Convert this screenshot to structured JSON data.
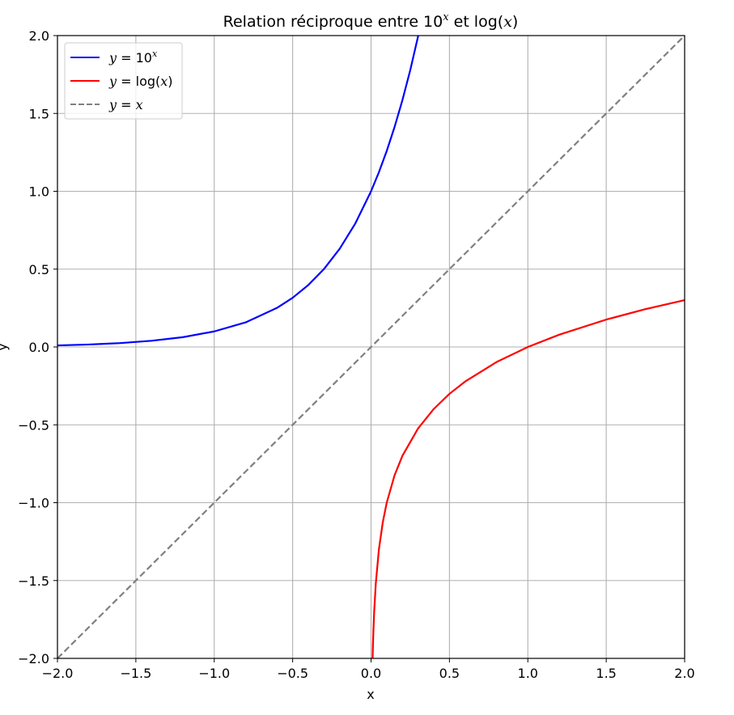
{
  "chart_data": {
    "type": "line",
    "title": {
      "prefix": "Relation réciproque entre 10",
      "sup": "x",
      "middle": " et log(",
      "var": "x",
      "suffix": ")"
    },
    "xlabel": "x",
    "ylabel": "y",
    "xlim": [
      -2.0,
      2.0
    ],
    "ylim": [
      -2.0,
      2.0
    ],
    "xticks": [
      -2.0,
      -1.5,
      -1.0,
      -0.5,
      0.0,
      0.5,
      1.0,
      1.5,
      2.0
    ],
    "yticks": [
      -2.0,
      -1.5,
      -1.0,
      -0.5,
      0.0,
      0.5,
      1.0,
      1.5,
      2.0
    ],
    "xtick_labels": [
      "−2.0",
      "−1.5",
      "−1.0",
      "−0.5",
      "0.0",
      "0.5",
      "1.0",
      "1.5",
      "2.0"
    ],
    "ytick_labels": [
      "−2.0",
      "−1.5",
      "−1.0",
      "−0.5",
      "0.0",
      "0.5",
      "1.0",
      "1.5",
      "2.0"
    ],
    "grid": true,
    "legend_position": "top-left",
    "series": [
      {
        "name": "y = 10^x",
        "legend": {
          "lhs": "y",
          "eq": " = 10",
          "sup": "x"
        },
        "color": "#0000ff",
        "style": "solid",
        "x": [
          -2.0,
          -1.8,
          -1.6,
          -1.4,
          -1.2,
          -1.0,
          -0.8,
          -0.6,
          -0.5,
          -0.4,
          -0.3,
          -0.2,
          -0.1,
          0.0,
          0.05,
          0.1,
          0.15,
          0.2,
          0.25,
          0.301
        ],
        "y": [
          0.01,
          0.016,
          0.025,
          0.04,
          0.063,
          0.1,
          0.158,
          0.251,
          0.316,
          0.398,
          0.501,
          0.631,
          0.794,
          1.0,
          1.122,
          1.259,
          1.413,
          1.585,
          1.778,
          2.0
        ]
      },
      {
        "name": "y = log(x)",
        "legend": {
          "lhs": "y",
          "eq": " = log(",
          "var": "x",
          "end": ")"
        },
        "color": "#ff0000",
        "style": "solid",
        "x": [
          0.01,
          0.012,
          0.015,
          0.02,
          0.03,
          0.05,
          0.075,
          0.1,
          0.15,
          0.2,
          0.3,
          0.4,
          0.5,
          0.6,
          0.8,
          1.0,
          1.2,
          1.5,
          1.75,
          2.0
        ],
        "y": [
          -2.0,
          -1.921,
          -1.824,
          -1.699,
          -1.523,
          -1.301,
          -1.125,
          -1.0,
          -0.824,
          -0.699,
          -0.523,
          -0.398,
          -0.301,
          -0.222,
          -0.097,
          0.0,
          0.079,
          0.176,
          0.243,
          0.301
        ]
      },
      {
        "name": "y = x",
        "legend": {
          "lhs": "y",
          "eq": " = ",
          "var": "x"
        },
        "color": "#808080",
        "style": "dashed",
        "x": [
          -2.0,
          2.0
        ],
        "y": [
          -2.0,
          2.0
        ]
      }
    ]
  }
}
